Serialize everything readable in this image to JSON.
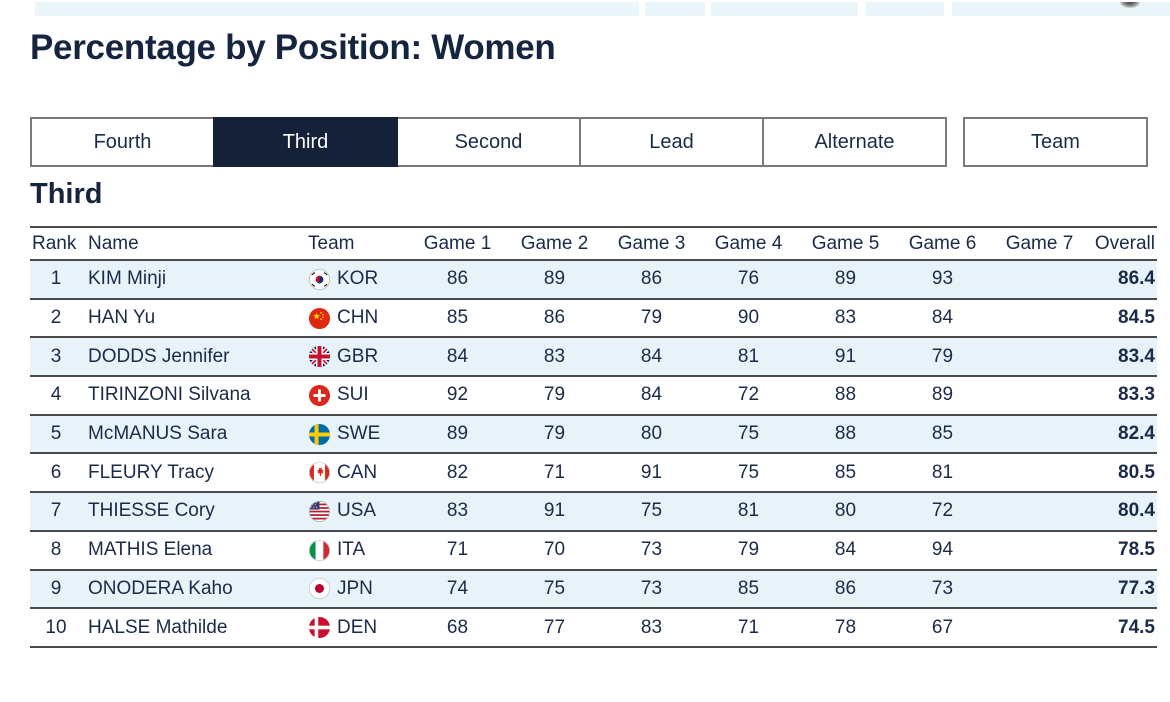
{
  "title": "Percentage by Position: Women",
  "tabs": {
    "items": [
      {
        "label": "Fourth",
        "active": false
      },
      {
        "label": "Third",
        "active": true
      },
      {
        "label": "Second",
        "active": false
      },
      {
        "label": "Lead",
        "active": false
      },
      {
        "label": "Alternate",
        "active": false
      },
      {
        "label": "Team",
        "active": false
      }
    ]
  },
  "section_heading": "Third",
  "table": {
    "columns": [
      "Rank",
      "Name",
      "Team",
      "Game 1",
      "Game 2",
      "Game 3",
      "Game 4",
      "Game 5",
      "Game 6",
      "Game 7",
      "Overall"
    ],
    "rows": [
      {
        "rank": "1",
        "name": "KIM Minji",
        "team": "KOR",
        "flag": "kor",
        "games": [
          "86",
          "89",
          "86",
          "76",
          "89",
          "93",
          ""
        ],
        "overall": "86.4"
      },
      {
        "rank": "2",
        "name": "HAN Yu",
        "team": "CHN",
        "flag": "chn",
        "games": [
          "85",
          "86",
          "79",
          "90",
          "83",
          "84",
          ""
        ],
        "overall": "84.5"
      },
      {
        "rank": "3",
        "name": "DODDS Jennifer",
        "team": "GBR",
        "flag": "gbr",
        "games": [
          "84",
          "83",
          "84",
          "81",
          "91",
          "79",
          ""
        ],
        "overall": "83.4"
      },
      {
        "rank": "4",
        "name": "TIRINZONI Silvana",
        "team": "SUI",
        "flag": "sui",
        "games": [
          "92",
          "79",
          "84",
          "72",
          "88",
          "89",
          ""
        ],
        "overall": "83.3"
      },
      {
        "rank": "5",
        "name": "McMANUS Sara",
        "team": "SWE",
        "flag": "swe",
        "games": [
          "89",
          "79",
          "80",
          "75",
          "88",
          "85",
          ""
        ],
        "overall": "82.4"
      },
      {
        "rank": "6",
        "name": "FLEURY Tracy",
        "team": "CAN",
        "flag": "can",
        "games": [
          "82",
          "71",
          "91",
          "75",
          "85",
          "81",
          ""
        ],
        "overall": "80.5"
      },
      {
        "rank": "7",
        "name": "THIESSE Cory",
        "team": "USA",
        "flag": "usa",
        "games": [
          "83",
          "91",
          "75",
          "81",
          "80",
          "72",
          ""
        ],
        "overall": "80.4"
      },
      {
        "rank": "8",
        "name": "MATHIS Elena",
        "team": "ITA",
        "flag": "ita",
        "games": [
          "71",
          "70",
          "73",
          "79",
          "84",
          "94",
          ""
        ],
        "overall": "78.5"
      },
      {
        "rank": "9",
        "name": "ONODERA Kaho",
        "team": "JPN",
        "flag": "jpn",
        "games": [
          "74",
          "75",
          "73",
          "85",
          "86",
          "73",
          ""
        ],
        "overall": "77.3"
      },
      {
        "rank": "10",
        "name": "HALSE Mathilde",
        "team": "DEN",
        "flag": "den",
        "games": [
          "68",
          "77",
          "83",
          "71",
          "78",
          "67",
          ""
        ],
        "overall": "74.5"
      }
    ]
  },
  "colors": {
    "text_navy": "#1a2b49",
    "active_tab_bg": "#152039",
    "row_alt_bg": "#e7f3f8",
    "topbar_bg": "#eaf6f9",
    "rule_gray": "#4a4a4a",
    "tab_border_gray": "#7a7a7a"
  }
}
